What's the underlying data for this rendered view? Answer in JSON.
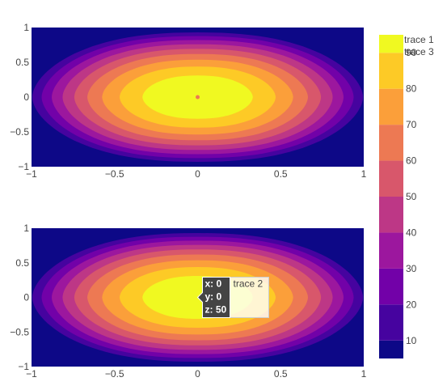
{
  "chart_data": [
    {
      "type": "contour",
      "subplot": "top",
      "series": [
        {
          "name": "trace 1",
          "z_formula": "a"
        },
        {
          "name": "trace 3",
          "z_formula": "a"
        }
      ],
      "x_range": [
        -1,
        1
      ],
      "y_range": [
        -1,
        1
      ],
      "x_ticks": [
        -1,
        -0.5,
        0,
        0.5,
        1
      ],
      "x_tick_labels": [
        "−1",
        "−0.5",
        "0",
        "0.5",
        "1"
      ],
      "y_ticks": [
        -1,
        -0.5,
        0,
        0.5,
        1
      ],
      "y_tick_labels": [
        "−1",
        "−0.5",
        "0",
        "0.5",
        "1"
      ],
      "z_peak": 100,
      "z_at_center": 100
    },
    {
      "type": "contour",
      "subplot": "bottom",
      "series": [
        {
          "name": "trace 2",
          "z_formula": "a"
        }
      ],
      "x_range": [
        -1,
        1
      ],
      "y_range": [
        -1,
        1
      ],
      "x_ticks": [
        -1,
        -0.5,
        0,
        0.5,
        1
      ],
      "x_tick_labels": [
        "−1",
        "−0.5",
        "0",
        "0.5",
        "1"
      ],
      "y_ticks": [
        -1,
        -0.5,
        0,
        0.5,
        1
      ],
      "y_tick_labels": [
        "−1",
        "−0.5",
        "0",
        "0.5",
        "1"
      ],
      "z_peak": 100,
      "hover": {
        "x": 0,
        "y": 0,
        "z": 50,
        "trace": "trace 2",
        "lines": [
          "x: 0",
          "y: 0",
          "z: 50"
        ]
      }
    }
  ],
  "colorbar": {
    "levels": [
      0,
      10,
      20,
      30,
      40,
      50,
      60,
      70,
      80,
      90,
      100
    ],
    "ticks": [
      10,
      20,
      30,
      40,
      50,
      60,
      70,
      80,
      90
    ],
    "colors": [
      "#0d0887",
      "#46039f",
      "#7201a8",
      "#9c179e",
      "#bd3786",
      "#d8576b",
      "#ed7953",
      "#fb9f3a",
      "#fdca26",
      "#f0f921"
    ]
  },
  "legend": {
    "items": [
      "trace 1",
      "trace 3"
    ]
  }
}
